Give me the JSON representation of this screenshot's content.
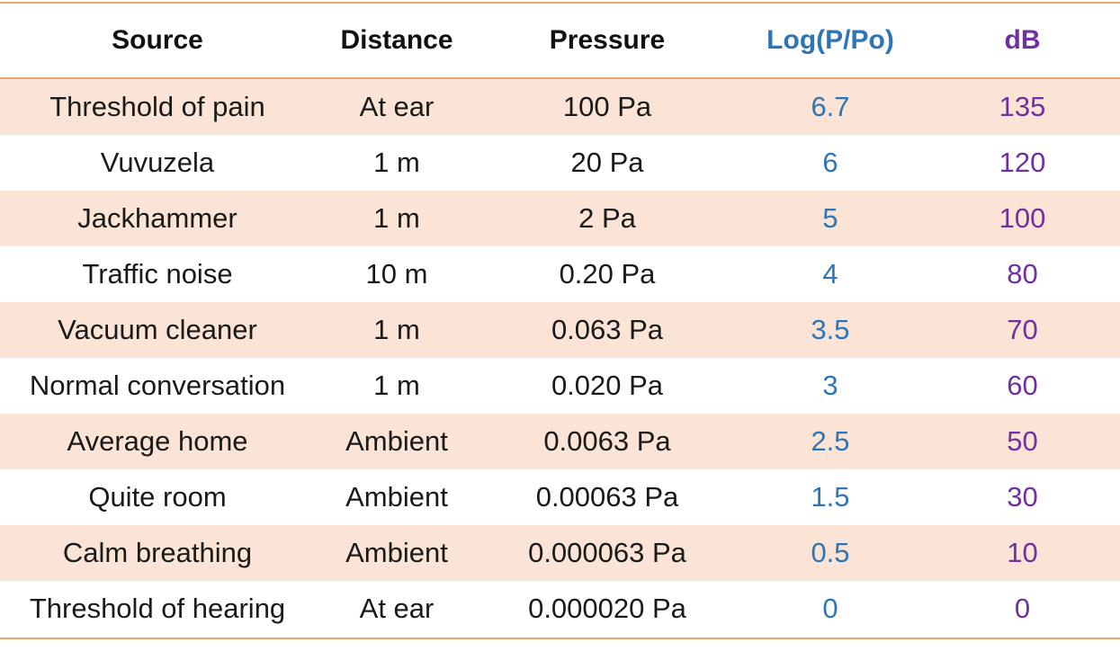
{
  "headers": {
    "source": "Source",
    "distance": "Distance",
    "pressure": "Pressure",
    "log": "Log(P/Po)",
    "db": "dB"
  },
  "colors": {
    "rule": "#f0a26b",
    "shade": "#fbe4d5",
    "log_column": "#2e75b6",
    "db_column": "#7030a0"
  },
  "rows": [
    {
      "source": "Threshold of pain",
      "distance": "At ear",
      "pressure": "100 Pa",
      "log": "6.7",
      "db": "135"
    },
    {
      "source": "Vuvuzela",
      "distance": "1 m",
      "pressure": "20 Pa",
      "log": "6",
      "db": "120"
    },
    {
      "source": "Jackhammer",
      "distance": "1 m",
      "pressure": "2 Pa",
      "log": "5",
      "db": "100"
    },
    {
      "source": "Traffic noise",
      "distance": "10 m",
      "pressure": "0.20 Pa",
      "log": "4",
      "db": "80"
    },
    {
      "source": "Vacuum cleaner",
      "distance": "1 m",
      "pressure": "0.063 Pa",
      "log": "3.5",
      "db": "70"
    },
    {
      "source": "Normal conversation",
      "distance": "1 m",
      "pressure": "0.020 Pa",
      "log": "3",
      "db": "60"
    },
    {
      "source": "Average home",
      "distance": "Ambient",
      "pressure": "0.0063 Pa",
      "log": "2.5",
      "db": "50"
    },
    {
      "source": "Quite room",
      "distance": "Ambient",
      "pressure": "0.00063 Pa",
      "log": "1.5",
      "db": "30"
    },
    {
      "source": "Calm breathing",
      "distance": "Ambient",
      "pressure": "0.000063 Pa",
      "log": "0.5",
      "db": "10"
    },
    {
      "source": "Threshold of hearing",
      "distance": "At ear",
      "pressure": "0.000020 Pa",
      "log": "0",
      "db": "0"
    }
  ]
}
